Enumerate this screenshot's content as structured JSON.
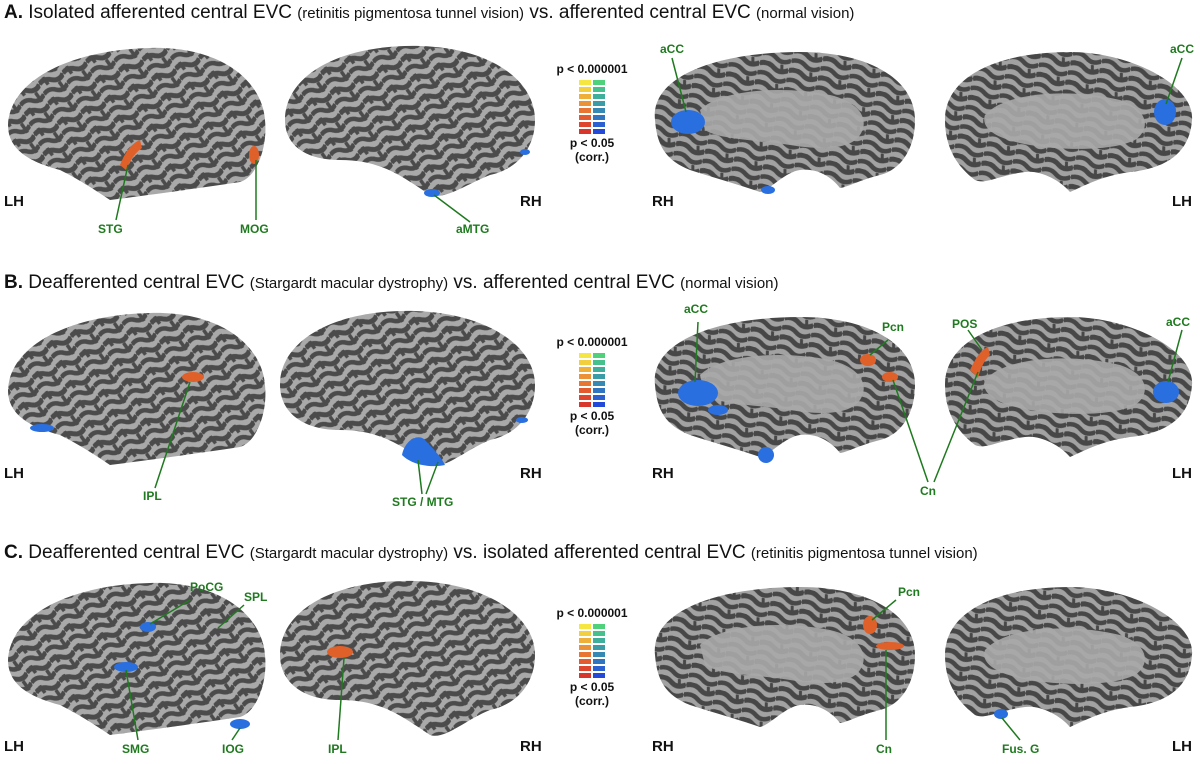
{
  "panels": [
    {
      "letter": "A.",
      "title_main_1": "Isolated afferented central EVC",
      "title_small_1": "(retinitis pigmentosa tunnel vision)",
      "title_main_2": "vs. afferented central EVC",
      "title_small_2": "(normal vision)",
      "hemisphere_labels": [
        "LH",
        "RH",
        "RH",
        "LH"
      ],
      "regions": [
        "STG",
        "MOG",
        "aMTG",
        "aCC",
        "aCC"
      ]
    },
    {
      "letter": "B.",
      "title_main_1": "Deafferented central EVC",
      "title_small_1": "(Stargardt macular dystrophy)",
      "title_main_2": "vs. afferented central EVC",
      "title_small_2": "(normal vision)",
      "hemisphere_labels": [
        "LH",
        "RH",
        "RH",
        "LH"
      ],
      "regions": [
        "IPL",
        "STG / MTG",
        "aCC",
        "Pcn",
        "POS",
        "aCC",
        "Cn"
      ]
    },
    {
      "letter": "C.",
      "title_main_1": "Deafferented central EVC",
      "title_small_1": "(Stargardt macular dystrophy)",
      "title_main_2": "vs. isolated afferented central EVC",
      "title_small_2": "(retinitis pigmentosa tunnel vision)",
      "hemisphere_labels": [
        "LH",
        "RH",
        "RH",
        "LH"
      ],
      "regions": [
        "PoCG",
        "SPL",
        "SMG",
        "IOG",
        "IPL",
        "Pcn",
        "Cn",
        "Fus. G"
      ]
    }
  ],
  "legend": {
    "top_label": "p < 0.000001",
    "bottom_label": "p < 0.05",
    "bottom_sub": "(corr.)",
    "warm_colors": [
      "#f5e642",
      "#f2cf3e",
      "#efb03a",
      "#ec9236",
      "#e87532",
      "#e45a2f",
      "#df452c",
      "#d8362a"
    ],
    "cool_colors": [
      "#4fd07a",
      "#46c08c",
      "#3fae9a",
      "#3a9ca6",
      "#3589b2",
      "#3075c0",
      "#2a60cf",
      "#2249d8"
    ]
  },
  "colors": {
    "label_green": "#1f7a1f",
    "sulcus_dark": "#4a4a4a",
    "gyrus_light": "#a8a8a8",
    "activation_warm": "#e0602a",
    "activation_cool": "#2a6fe0"
  }
}
